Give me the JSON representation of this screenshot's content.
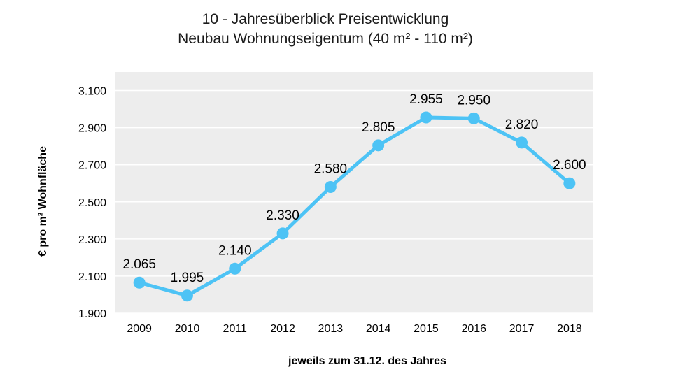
{
  "chart_data": {
    "type": "line",
    "title": [
      "10 - Jahresüberblick Preisentwicklung",
      "Neubau Wohnungseigentum (40 m² - 110 m²)"
    ],
    "xlabel": "jeweils zum 31.12. des Jahres",
    "ylabel": "€ pro m² Wohnfläche",
    "categories": [
      "2009",
      "2010",
      "2011",
      "2012",
      "2013",
      "2014",
      "2015",
      "2016",
      "2017",
      "2018"
    ],
    "values": [
      2065,
      1995,
      2140,
      2330,
      2580,
      2805,
      2955,
      2950,
      2820,
      2600
    ],
    "data_labels": [
      "2.065",
      "1.995",
      "2.140",
      "2.330",
      "2.580",
      "2.805",
      "2.955",
      "2.950",
      "2.820",
      "2.600"
    ],
    "yticks": [
      1900,
      2100,
      2300,
      2500,
      2700,
      2900,
      3100
    ],
    "ytick_labels": [
      "1.900",
      "2.100",
      "2.300",
      "2.500",
      "2.700",
      "2.900",
      "3.100"
    ],
    "ylim": [
      1900,
      3200
    ],
    "grid": true,
    "colors": {
      "line": "#4DC3F5",
      "plot_bg": "#EDEDED",
      "grid": "#FFFFFF"
    }
  }
}
